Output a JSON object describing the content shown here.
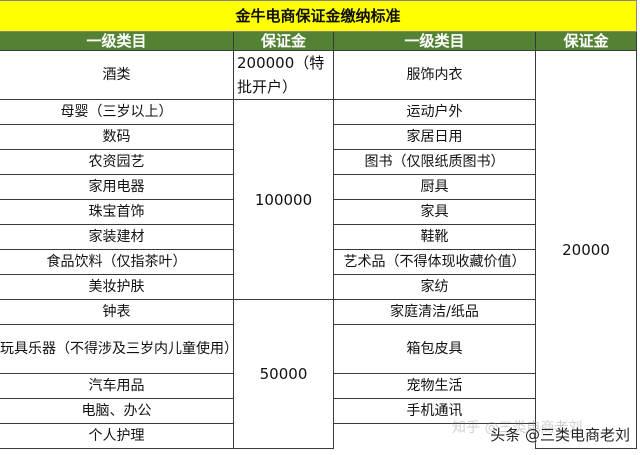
{
  "title": "金牛电商保证金缴纳标准",
  "headers": [
    "一级类目",
    "保证金",
    "一级类目",
    "保证金"
  ],
  "left": [
    "酒类",
    "母婴（三岁以上）",
    "数码",
    "农资园艺",
    "家用电器",
    "珠宝首饰",
    "家装建材",
    "食品饮料（仅指茶叶）",
    "美妆护肤",
    "钟表",
    "玩具乐器（不得涉及三岁内儿童使用）",
    "汽车用品",
    "电脑、办公",
    "个人护理"
  ],
  "left_deposits": [
    "200000（特批开户）",
    "100000",
    "50000"
  ],
  "right": [
    "服饰内衣",
    "运动户外",
    "家居日用",
    "图书（仅限纸质图书）",
    "厨具",
    "家具",
    "鞋靴",
    "艺术品（不得体现收藏价值）",
    "家纺",
    "家庭清洁/纸品",
    "箱包皮具",
    "宠物生活",
    "手机通讯"
  ],
  "right_deposit": "20000",
  "watermark": "头条 @三类电商老刘",
  "watermark_faint": "知乎 @三类电商老刘",
  "colors": {
    "title_bg": "#ffff00",
    "header_bg": "#548235"
  }
}
